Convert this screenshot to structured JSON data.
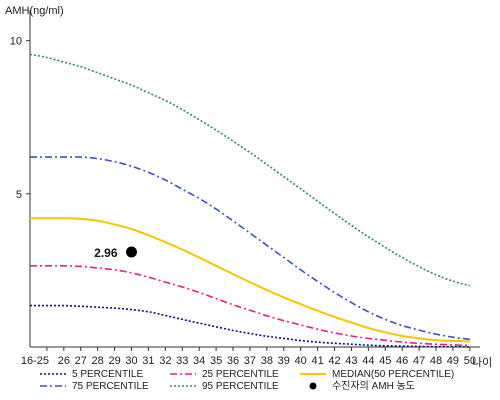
{
  "chart_data": {
    "type": "line",
    "title": "",
    "ylabel": "AMH(ng/ml)",
    "xlabel": "나이",
    "ylim": [
      0,
      11
    ],
    "yticks": [
      5,
      10
    ],
    "ytick_labels": [
      "5",
      "10"
    ],
    "x": [
      24,
      25,
      26,
      27,
      28,
      29,
      30,
      31,
      32,
      33,
      34,
      35,
      36,
      37,
      38,
      39,
      40,
      41,
      42,
      43,
      44,
      45,
      46,
      47,
      48,
      49,
      50
    ],
    "x_labels": [
      "16-25",
      "26",
      "27",
      "28",
      "29",
      "30",
      "31",
      "32",
      "33",
      "34",
      "35",
      "36",
      "37",
      "38",
      "39",
      "40",
      "41",
      "42",
      "43",
      "44",
      "45",
      "46",
      "47",
      "48",
      "49",
      "50"
    ],
    "x_label_positions": [
      25,
      26,
      27,
      28,
      29,
      30,
      31,
      32,
      33,
      34,
      35,
      36,
      37,
      38,
      39,
      40,
      41,
      42,
      43,
      44,
      45,
      46,
      47,
      48,
      49,
      50
    ],
    "series": [
      {
        "name": "5 PERCENTILE",
        "color": "#0a0a80",
        "dash": "2,2",
        "values": [
          1.35,
          1.35,
          1.35,
          1.33,
          1.3,
          1.27,
          1.22,
          1.15,
          1.03,
          0.9,
          0.78,
          0.66,
          0.54,
          0.44,
          0.35,
          0.28,
          0.21,
          0.16,
          0.12,
          0.09,
          0.06,
          0.04,
          0.03,
          0.02,
          0.01,
          0.01,
          0.0
        ]
      },
      {
        "name": "25 PERCENTILE",
        "color": "#e0208c",
        "dash": "7,3,2,3",
        "values": [
          2.65,
          2.65,
          2.65,
          2.63,
          2.58,
          2.52,
          2.42,
          2.28,
          2.12,
          1.96,
          1.78,
          1.58,
          1.38,
          1.2,
          1.02,
          0.86,
          0.72,
          0.58,
          0.46,
          0.36,
          0.28,
          0.22,
          0.16,
          0.12,
          0.09,
          0.07,
          0.05
        ]
      },
      {
        "name": "MEDIAN(50 PERCENTILE)",
        "color": "#f2c600",
        "dash": "",
        "values": [
          4.2,
          4.2,
          4.2,
          4.18,
          4.12,
          4.0,
          3.85,
          3.65,
          3.42,
          3.18,
          2.92,
          2.65,
          2.38,
          2.12,
          1.86,
          1.62,
          1.4,
          1.18,
          0.98,
          0.8,
          0.62,
          0.48,
          0.36,
          0.28,
          0.22,
          0.2,
          0.18
        ]
      },
      {
        "name": "75 PERCENTILE",
        "color": "#3c50c8",
        "dash": "7,3,2,3",
        "values": [
          6.2,
          6.2,
          6.2,
          6.2,
          6.15,
          6.05,
          5.9,
          5.7,
          5.45,
          5.15,
          4.85,
          4.5,
          4.12,
          3.72,
          3.32,
          2.92,
          2.52,
          2.14,
          1.78,
          1.45,
          1.15,
          0.9,
          0.7,
          0.55,
          0.42,
          0.32,
          0.25
        ]
      },
      {
        "name": "95 PERCENTILE",
        "color": "#2e8b57",
        "dash": "2,2",
        "values": [
          9.55,
          9.45,
          9.3,
          9.15,
          8.95,
          8.75,
          8.55,
          8.3,
          8.05,
          7.75,
          7.42,
          7.08,
          6.72,
          6.35,
          5.96,
          5.56,
          5.16,
          4.76,
          4.36,
          3.97,
          3.6,
          3.25,
          2.92,
          2.62,
          2.36,
          2.15,
          2.0
        ]
      }
    ],
    "marker": {
      "label": "2.96",
      "x": 30,
      "y": 3.1,
      "legend": "수진자의 AMH 농도"
    },
    "legend_position": "bottom",
    "grid": false
  }
}
